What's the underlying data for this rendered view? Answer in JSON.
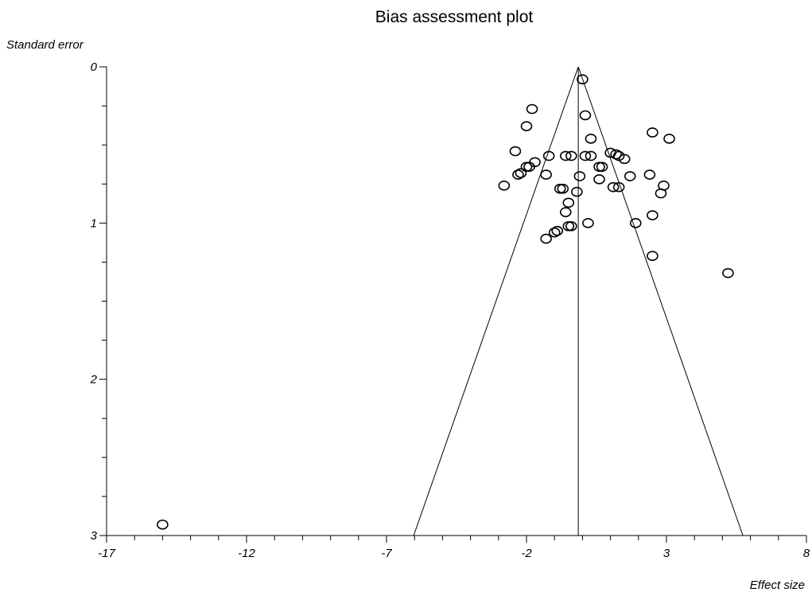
{
  "chart_data": {
    "type": "scatter",
    "title": "Bias assessment plot",
    "xlabel": "Effect size",
    "ylabel": "Standard error",
    "xlim": [
      -17,
      8
    ],
    "ylim": [
      0,
      3
    ],
    "y_inverted": true,
    "x_ticks": [
      -17,
      -12,
      -7,
      -2,
      3,
      8
    ],
    "y_ticks": [
      0,
      1,
      2,
      3
    ],
    "x_minor_step": 1,
    "y_minor_step": 0.25,
    "pooled_estimate": -0.15,
    "funnel_multiplier": 1.96,
    "grid": false,
    "legend": "none",
    "points": [
      {
        "x": 0.0,
        "y": 0.08
      },
      {
        "x": -1.8,
        "y": 0.27
      },
      {
        "x": 0.1,
        "y": 0.31
      },
      {
        "x": -2.0,
        "y": 0.38
      },
      {
        "x": 2.5,
        "y": 0.42
      },
      {
        "x": 0.3,
        "y": 0.46
      },
      {
        "x": 3.1,
        "y": 0.46
      },
      {
        "x": -2.4,
        "y": 0.54
      },
      {
        "x": -1.2,
        "y": 0.57
      },
      {
        "x": -0.4,
        "y": 0.57
      },
      {
        "x": -0.6,
        "y": 0.57
      },
      {
        "x": 0.1,
        "y": 0.57
      },
      {
        "x": 0.3,
        "y": 0.57
      },
      {
        "x": 1.0,
        "y": 0.55
      },
      {
        "x": 1.2,
        "y": 0.56
      },
      {
        "x": 1.3,
        "y": 0.57
      },
      {
        "x": 1.5,
        "y": 0.59
      },
      {
        "x": -1.7,
        "y": 0.61
      },
      {
        "x": -1.9,
        "y": 0.64
      },
      {
        "x": -2.0,
        "y": 0.64
      },
      {
        "x": 0.6,
        "y": 0.64
      },
      {
        "x": 0.7,
        "y": 0.64
      },
      {
        "x": -2.2,
        "y": 0.68
      },
      {
        "x": -2.3,
        "y": 0.69
      },
      {
        "x": -1.3,
        "y": 0.69
      },
      {
        "x": -0.1,
        "y": 0.7
      },
      {
        "x": 1.7,
        "y": 0.7
      },
      {
        "x": 2.4,
        "y": 0.69
      },
      {
        "x": 0.6,
        "y": 0.72
      },
      {
        "x": -2.8,
        "y": 0.76
      },
      {
        "x": -0.7,
        "y": 0.78
      },
      {
        "x": -0.8,
        "y": 0.78
      },
      {
        "x": 1.1,
        "y": 0.77
      },
      {
        "x": 1.3,
        "y": 0.77
      },
      {
        "x": 2.9,
        "y": 0.76
      },
      {
        "x": 2.8,
        "y": 0.81
      },
      {
        "x": -0.2,
        "y": 0.8
      },
      {
        "x": -0.5,
        "y": 0.87
      },
      {
        "x": -0.6,
        "y": 0.93
      },
      {
        "x": 2.5,
        "y": 0.95
      },
      {
        "x": 1.9,
        "y": 1.0
      },
      {
        "x": 0.2,
        "y": 1.0
      },
      {
        "x": -0.5,
        "y": 1.02
      },
      {
        "x": -0.4,
        "y": 1.02
      },
      {
        "x": -0.9,
        "y": 1.05
      },
      {
        "x": -1.0,
        "y": 1.06
      },
      {
        "x": -1.3,
        "y": 1.1
      },
      {
        "x": 2.5,
        "y": 1.21
      },
      {
        "x": 5.2,
        "y": 1.32
      },
      {
        "x": -15.0,
        "y": 2.93
      }
    ]
  }
}
